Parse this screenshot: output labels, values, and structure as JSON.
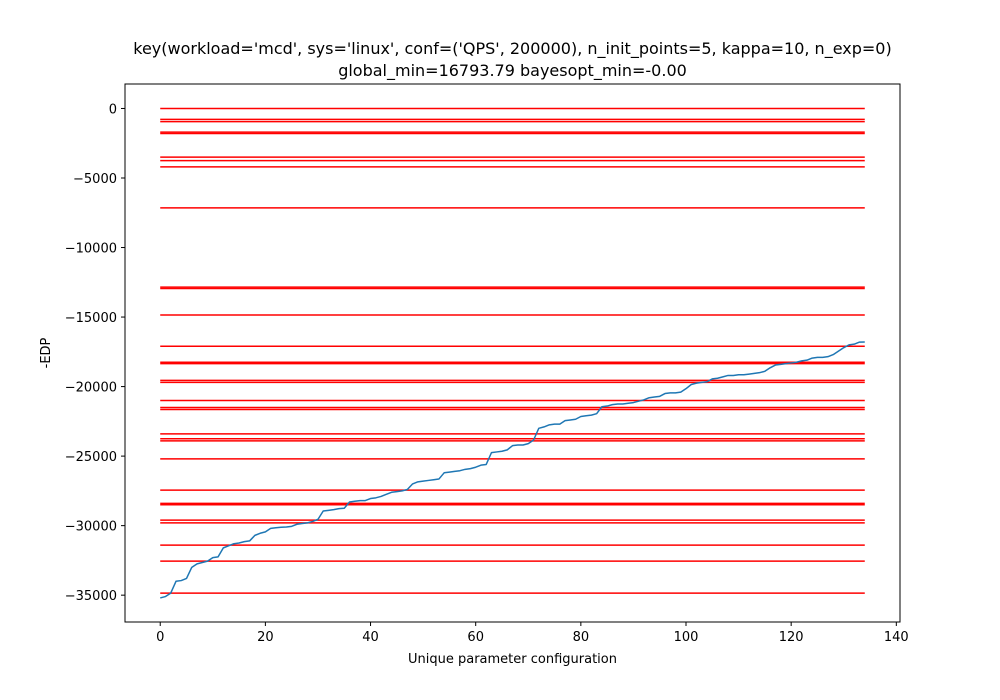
{
  "chart_data": {
    "type": "line",
    "title": "key(workload='mcd', sys='linux', conf=('QPS', 200000), n_init_points=5, kappa=10, n_exp=0)",
    "subtitle": "global_min=16793.79 bayesopt_min=-0.00",
    "xlabel": "Unique parameter configuration",
    "ylabel": "-EDP",
    "xlim": [
      -6.7,
      140.7
    ],
    "ylim": [
      -36930,
      1760
    ],
    "x_ticks": [
      0,
      20,
      40,
      60,
      80,
      100,
      120,
      140
    ],
    "x_tick_labels": [
      "0",
      "20",
      "40",
      "60",
      "80",
      "100",
      "120",
      "140"
    ],
    "y_ticks": [
      0,
      -5000,
      -10000,
      -15000,
      -20000,
      -25000,
      -30000,
      -35000
    ],
    "y_tick_labels": [
      "0",
      "−5000",
      "−10000",
      "−15000",
      "−20000",
      "−25000",
      "−30000",
      "−35000"
    ],
    "grid": false,
    "hline_series": {
      "color": "#ff0000",
      "x_range": [
        0,
        134
      ],
      "y_values": [
        0,
        -780,
        -950,
        -1700,
        -1800,
        -3500,
        -3750,
        -4200,
        -7150,
        -12850,
        -12950,
        -14850,
        -17100,
        -18250,
        -18350,
        -19550,
        -19700,
        -21000,
        -21500,
        -21650,
        -23400,
        -23750,
        -23900,
        -25200,
        -27450,
        -28400,
        -28500,
        -29600,
        -29800,
        -31400,
        -32550,
        -34850
      ]
    },
    "line_series": {
      "color": "#1f77b4",
      "x": [
        0,
        1,
        2,
        3,
        4,
        5,
        6,
        7,
        8,
        9,
        10,
        11,
        12,
        13,
        14,
        15,
        16,
        17,
        18,
        19,
        20,
        21,
        22,
        23,
        24,
        25,
        26,
        27,
        28,
        29,
        30,
        31,
        32,
        33,
        34,
        35,
        36,
        37,
        38,
        39,
        40,
        41,
        42,
        43,
        44,
        45,
        46,
        47,
        48,
        49,
        50,
        51,
        52,
        53,
        54,
        55,
        56,
        57,
        58,
        59,
        60,
        61,
        62,
        63,
        64,
        65,
        66,
        67,
        68,
        69,
        70,
        71,
        72,
        73,
        74,
        75,
        76,
        77,
        78,
        79,
        80,
        81,
        82,
        83,
        84,
        85,
        86,
        87,
        88,
        89,
        90,
        91,
        92,
        93,
        94,
        95,
        96,
        97,
        98,
        99,
        100,
        101,
        102,
        103,
        104,
        105,
        106,
        107,
        108,
        109,
        110,
        111,
        112,
        113,
        114,
        115,
        116,
        117,
        118,
        119,
        120,
        121,
        122,
        123,
        124,
        125,
        126,
        127,
        128,
        129,
        130,
        131,
        132,
        133,
        134
      ],
      "y": [
        -35200,
        -35100,
        -34850,
        -34000,
        -33950,
        -33800,
        -33000,
        -32750,
        -32650,
        -32550,
        -32300,
        -32250,
        -31600,
        -31450,
        -31300,
        -31250,
        -31150,
        -31100,
        -30700,
        -30550,
        -30450,
        -30200,
        -30150,
        -30120,
        -30100,
        -30050,
        -29900,
        -29850,
        -29800,
        -29700,
        -29550,
        -28950,
        -28900,
        -28850,
        -28780,
        -28750,
        -28300,
        -28250,
        -28200,
        -28200,
        -28050,
        -28000,
        -27900,
        -27750,
        -27600,
        -27550,
        -27500,
        -27400,
        -27000,
        -26850,
        -26800,
        -26750,
        -26700,
        -26650,
        -26200,
        -26150,
        -26100,
        -26050,
        -25950,
        -25900,
        -25800,
        -25650,
        -25600,
        -24750,
        -24700,
        -24650,
        -24550,
        -24250,
        -24200,
        -24200,
        -24100,
        -23850,
        -23000,
        -22900,
        -22750,
        -22700,
        -22700,
        -22450,
        -22400,
        -22350,
        -22150,
        -22100,
        -22050,
        -21950,
        -21450,
        -21400,
        -21300,
        -21250,
        -21250,
        -21200,
        -21150,
        -21050,
        -20950,
        -20800,
        -20750,
        -20700,
        -20500,
        -20450,
        -20450,
        -20400,
        -20150,
        -19850,
        -19750,
        -19700,
        -19650,
        -19450,
        -19400,
        -19300,
        -19200,
        -19200,
        -19150,
        -19150,
        -19100,
        -19050,
        -19000,
        -18900,
        -18650,
        -18450,
        -18400,
        -18350,
        -18300,
        -18250,
        -18150,
        -18100,
        -17950,
        -17900,
        -17900,
        -17850,
        -17700,
        -17450,
        -17200,
        -17000,
        -16950,
        -16800,
        -16794
      ]
    }
  }
}
